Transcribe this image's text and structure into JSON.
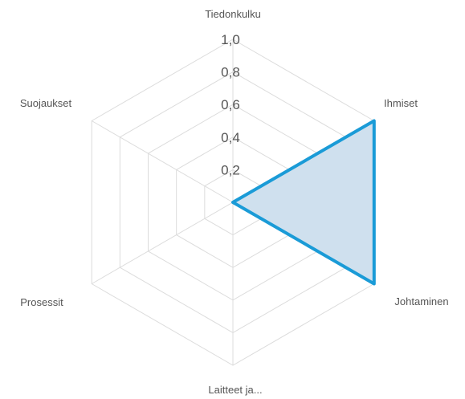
{
  "chart_data": {
    "type": "radar",
    "categories": [
      "Tiedonkulku",
      "Ihmiset",
      "Johtaminen",
      "Laitteet ja...",
      "Prosessit",
      "Suojaukset"
    ],
    "series": [
      {
        "values": [
          0,
          1.0,
          1.0,
          0,
          0,
          0
        ]
      }
    ],
    "rlim": [
      0,
      1.0
    ],
    "tick_values": [
      0.2,
      0.4,
      0.6,
      0.8,
      1.0
    ],
    "tick_labels": [
      "0,2",
      "0,4",
      "0,6",
      "0,8",
      "1,0"
    ],
    "grid": true,
    "colors": {
      "series_stroke": "#1a9bd7",
      "series_fill": "#cfe0ee",
      "grid": "#dcdcdc",
      "text": "#555555"
    }
  }
}
